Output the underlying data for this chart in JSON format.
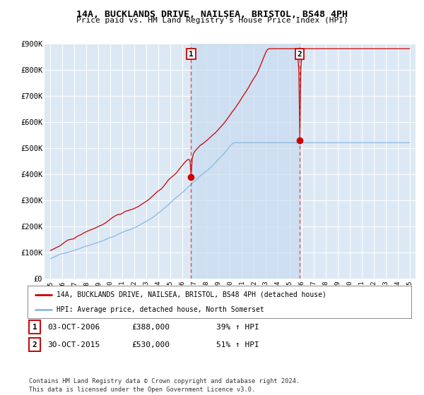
{
  "title": "14A, BUCKLANDS DRIVE, NAILSEA, BRISTOL, BS48 4PH",
  "subtitle": "Price paid vs. HM Land Registry's House Price Index (HPI)",
  "ylim": [
    0,
    900000
  ],
  "yticks": [
    0,
    100000,
    200000,
    300000,
    400000,
    500000,
    600000,
    700000,
    800000,
    900000
  ],
  "ytick_labels": [
    "£0",
    "£100K",
    "£200K",
    "£300K",
    "£400K",
    "£500K",
    "£600K",
    "£700K",
    "£800K",
    "£900K"
  ],
  "background_color": "#dce9f5",
  "grid_color": "#ffffff",
  "shade_color": "#c8dcf0",
  "marker1_year": 2006.75,
  "marker1_price": 388000,
  "marker2_year": 2015.83,
  "marker2_price": 530000,
  "vline1_x": 2006.75,
  "vline2_x": 2015.83,
  "legend_label1": "14A, BUCKLANDS DRIVE, NAILSEA, BRISTOL, BS48 4PH (detached house)",
  "legend_label2": "HPI: Average price, detached house, North Somerset",
  "table_row1": [
    "1",
    "03-OCT-2006",
    "£388,000",
    "39% ↑ HPI"
  ],
  "table_row2": [
    "2",
    "30-OCT-2015",
    "£530,000",
    "51% ↑ HPI"
  ],
  "footer": "Contains HM Land Registry data © Crown copyright and database right 2024.\nThis data is licensed under the Open Government Licence v3.0.",
  "line1_color": "#cc0000",
  "line2_color": "#89b8df",
  "vline_color": "#dd4444",
  "box_color": "#cc0000",
  "xlim_left": 1994.5,
  "xlim_right": 2025.5
}
